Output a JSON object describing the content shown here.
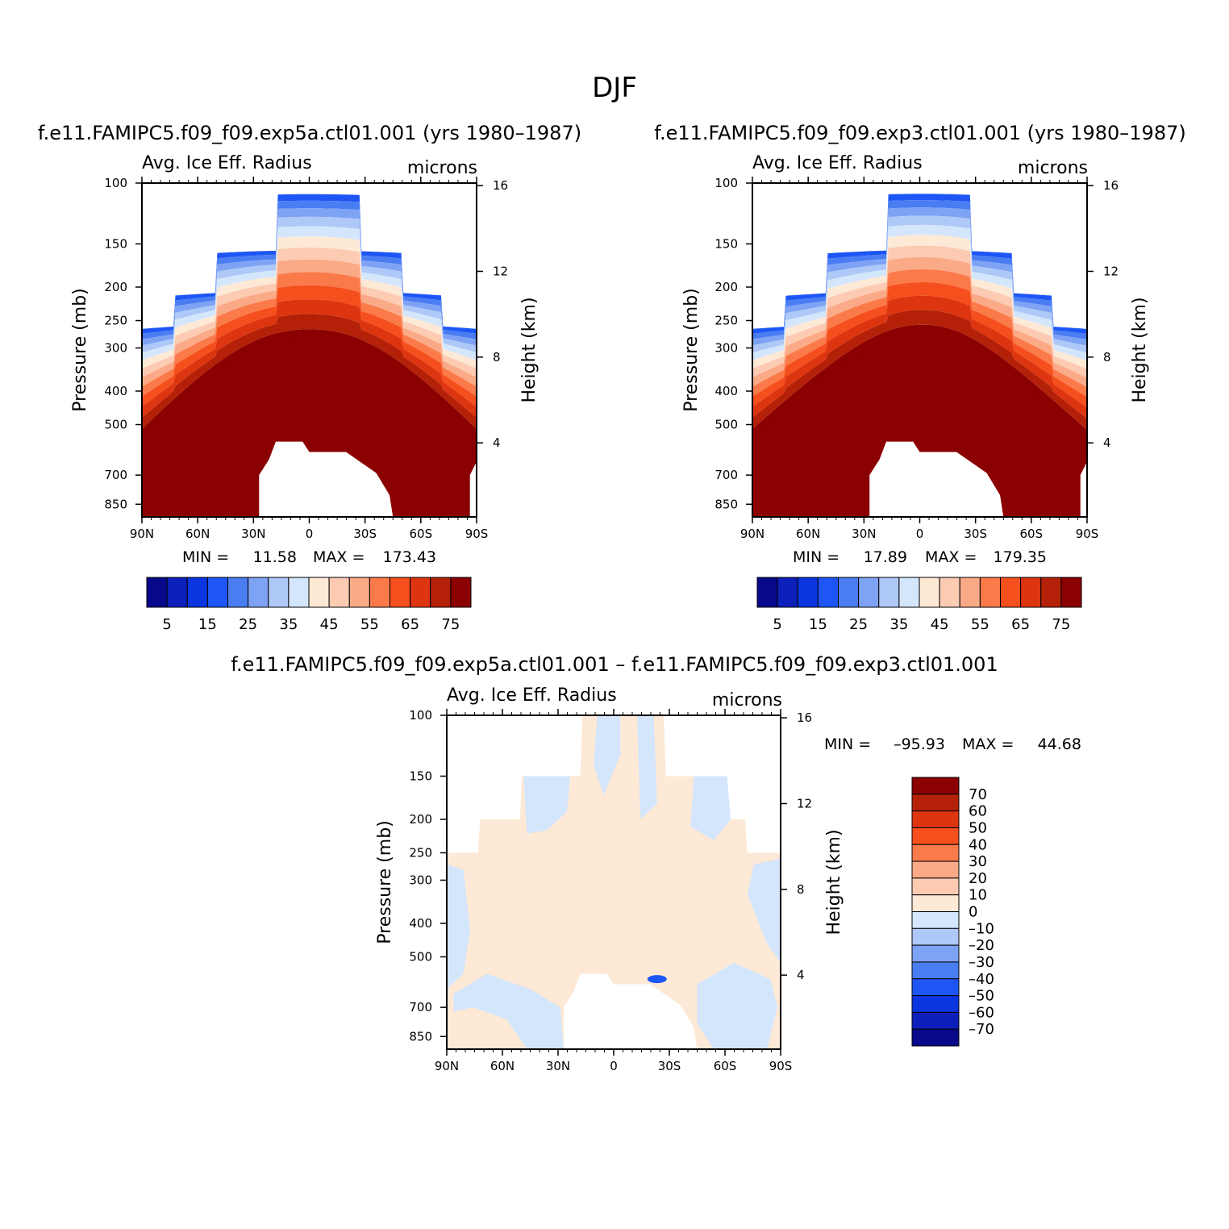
{
  "figure": {
    "title": "DJF",
    "variable": "Avg. Ice Eff. Radius",
    "units": "microns",
    "left_title": "f.e11.FAMIPC5.f09_f09.exp5a.ctl01.001 (yrs 1980–1987)",
    "right_title": "f.e11.FAMIPC5.f09_f09.exp3.ctl01.001 (yrs 1980–1987)",
    "diff_title": "f.e11.FAMIPC5.f09_f09.exp5a.ctl01.001 – f.e11.FAMIPC5.f09_f09.exp3.ctl01.001"
  },
  "colors": {
    "abs": [
      "#08088a",
      "#0c1fba",
      "#0a35e0",
      "#1e56f5",
      "#4a7df2",
      "#7ea3f5",
      "#aec8f7",
      "#d4e6fb",
      "#fde9d6",
      "#fccbb2",
      "#fbaa88",
      "#fa7a4a",
      "#f54f1d",
      "#dd3510",
      "#b52108",
      "#8b0000"
    ],
    "diff": [
      "#8b0000",
      "#b52108",
      "#dd3510",
      "#f54f1d",
      "#fa7a4a",
      "#fbaa88",
      "#fccbb2",
      "#fde9d6",
      "#d4e6fb",
      "#aec8f7",
      "#7ea3f5",
      "#4a7df2",
      "#1e56f5",
      "#0a35e0",
      "#0c1fba",
      "#08088a"
    ]
  },
  "chart_data": [
    {
      "type": "heatmap",
      "title": "f.e11.FAMIPC5.f09_f09.exp5a.ctl01.001 (yrs 1980–1987)",
      "left_string": "Avg. Ice Eff. Radius",
      "right_string": "microns",
      "ylabel": "Pressure (mb)",
      "ylabel_right": "Height (km)",
      "x_ticks": [
        "90N",
        "60N",
        "30N",
        "0",
        "30S",
        "60S",
        "90S"
      ],
      "y_ticks": [
        100,
        150,
        200,
        250,
        300,
        400,
        500,
        700,
        850
      ],
      "y_right_ticks": [
        16,
        12,
        8,
        4
      ],
      "min_label": "MIN =",
      "max_label": "MAX =",
      "min": "11.58",
      "max": "173.43",
      "colorbar_labels": [
        "5",
        "15",
        "25",
        "35",
        "45",
        "55",
        "65",
        "75"
      ]
    },
    {
      "type": "heatmap",
      "title": "f.e11.FAMIPC5.f09_f09.exp3.ctl01.001 (yrs 1980–1987)",
      "left_string": "Avg. Ice Eff. Radius",
      "right_string": "microns",
      "ylabel": "Pressure (mb)",
      "ylabel_right": "Height (km)",
      "x_ticks": [
        "90N",
        "60N",
        "30N",
        "0",
        "30S",
        "60S",
        "90S"
      ],
      "y_ticks": [
        100,
        150,
        200,
        250,
        300,
        400,
        500,
        700,
        850
      ],
      "y_right_ticks": [
        16,
        12,
        8,
        4
      ],
      "min_label": "MIN =",
      "max_label": "MAX =",
      "min": "17.89",
      "max": "179.35",
      "colorbar_labels": [
        "5",
        "15",
        "25",
        "35",
        "45",
        "55",
        "65",
        "75"
      ]
    },
    {
      "type": "heatmap",
      "title": "f.e11.FAMIPC5.f09_f09.exp5a.ctl01.001 – f.e11.FAMIPC5.f09_f09.exp3.ctl01.001",
      "left_string": "Avg. Ice Eff. Radius",
      "right_string": "microns",
      "ylabel": "Pressure (mb)",
      "ylabel_right": "Height (km)",
      "x_ticks": [
        "90N",
        "60N",
        "30N",
        "0",
        "30S",
        "60S",
        "90S"
      ],
      "y_ticks": [
        100,
        150,
        200,
        250,
        300,
        400,
        500,
        700,
        850
      ],
      "y_right_ticks": [
        16,
        12,
        8,
        4
      ],
      "min_label": "MIN =",
      "max_label": "MAX =",
      "min": "–95.93",
      "max": "44.68",
      "colorbar_labels": [
        "70",
        "60",
        "50",
        "40",
        "30",
        "20",
        "10",
        "0",
        "–10",
        "–20",
        "–30",
        "–40",
        "–50",
        "–60",
        "–70"
      ]
    }
  ]
}
